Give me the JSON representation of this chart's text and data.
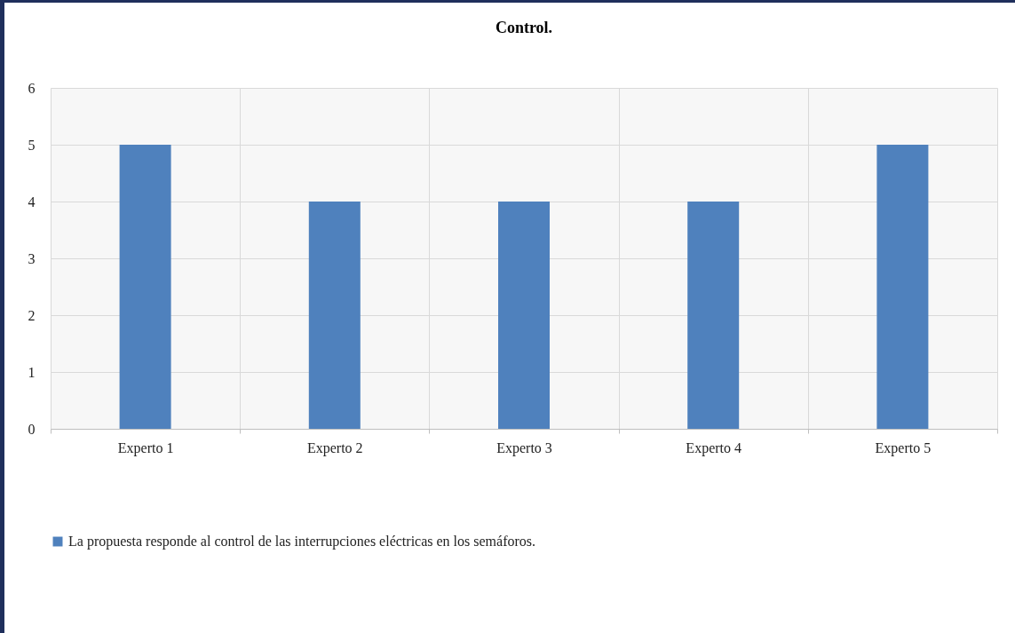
{
  "chart_data": {
    "type": "bar",
    "title": "Control.",
    "categories": [
      "Experto 1",
      "Experto 2",
      "Experto 3",
      "Experto 4",
      "Experto 5"
    ],
    "series": [
      {
        "name": "La propuesta responde al control de las interrupciones eléctricas en los semáforos.",
        "color": "#4f81bd",
        "values": [
          5,
          4,
          4,
          4,
          5
        ]
      }
    ],
    "ylim": [
      0,
      6
    ],
    "yticks": [
      0,
      1,
      2,
      3,
      4,
      5,
      6
    ],
    "grid": true,
    "legend": "bottom"
  }
}
